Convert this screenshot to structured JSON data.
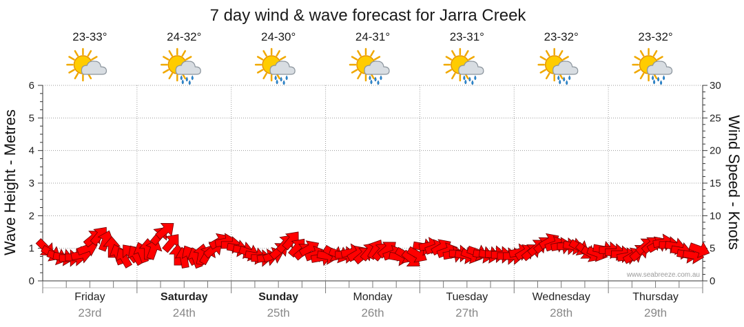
{
  "chart_data": {
    "type": "line",
    "title": "7 day wind & wave forecast for Jarra Creek",
    "ylabel_left": "Wave Height - Metres",
    "ylabel_right": "Wind Speed - Knots",
    "ylim_left": [
      0,
      6
    ],
    "ylim_right": [
      0,
      30
    ],
    "yticks_left": [
      "0",
      "1",
      "2",
      "3",
      "4",
      "5",
      "6"
    ],
    "yticks_right": [
      "0",
      "5",
      "10",
      "15",
      "20",
      "25",
      "30"
    ],
    "grid": true,
    "watermark": "www.seabreeze.com.au",
    "days": [
      {
        "name": "Friday",
        "date": "23rd",
        "temp": "23-33°",
        "weather": "partly-cloudy",
        "bold": false
      },
      {
        "name": "Saturday",
        "date": "24th",
        "temp": "24-32°",
        "weather": "showers",
        "bold": true
      },
      {
        "name": "Sunday",
        "date": "25th",
        "temp": "24-30°",
        "weather": "showers",
        "bold": true
      },
      {
        "name": "Monday",
        "date": "26th",
        "temp": "24-31°",
        "weather": "showers",
        "bold": false
      },
      {
        "name": "Tuesday",
        "date": "27th",
        "temp": "23-31°",
        "weather": "showers",
        "bold": false
      },
      {
        "name": "Wednesday",
        "date": "28th",
        "temp": "23-32°",
        "weather": "showers",
        "bold": false
      },
      {
        "name": "Thursday",
        "date": "29th",
        "temp": "23-32°",
        "weather": "showers",
        "bold": false
      }
    ],
    "series": [
      {
        "name": "Wind Speed",
        "color": "#ff0000",
        "unit": "knots",
        "values": [
          5.0,
          4.2,
          3.7,
          3.6,
          3.5,
          3.6,
          4.0,
          5.0,
          6.6,
          7.0,
          6.2,
          5.2,
          4.1,
          3.6,
          4.3,
          4.0,
          4.4,
          4.9,
          4.9,
          7.0,
          7.8,
          5.9,
          4.0,
          3.6,
          4.0,
          3.6,
          4.1,
          4.1,
          4.9,
          6.1,
          6.0,
          5.5,
          5.0,
          4.7,
          4.3,
          3.8,
          3.5,
          3.6,
          3.9,
          4.7,
          5.8,
          6.3,
          5.2,
          4.6,
          5.0,
          4.1,
          3.6,
          3.8,
          4.2,
          4.0,
          4.0,
          4.4,
          4.2,
          4.0,
          4.6,
          4.9,
          4.6,
          4.9,
          4.2,
          3.6,
          3.9,
          3.3,
          4.0,
          5.2,
          5.4,
          5.1,
          5.2,
          4.6,
          4.1,
          4.2,
          3.9,
          3.9,
          4.3,
          4.0,
          4.0,
          4.1,
          4.0,
          3.8,
          3.8,
          4.4,
          4.4,
          4.5,
          5.2,
          5.6,
          6.1,
          5.6,
          5.4,
          5.3,
          5.3,
          5.1,
          4.5,
          4.1,
          4.2,
          4.8,
          4.7,
          4.4,
          4.1,
          3.8,
          3.9,
          4.4,
          5.4,
          5.6,
          5.6,
          5.9,
          5.5,
          5.3,
          4.6,
          4.0,
          3.9,
          4.8
        ]
      },
      {
        "name": "Wind Direction",
        "unit": "degrees (from)",
        "values": [
          315,
          300,
          290,
          280,
          270,
          270,
          260,
          250,
          230,
          220,
          200,
          180,
          160,
          150,
          140,
          150,
          160,
          180,
          200,
          220,
          230,
          220,
          180,
          170,
          150,
          160,
          190,
          210,
          230,
          240,
          260,
          270,
          280,
          280,
          290,
          280,
          270,
          260,
          250,
          230,
          220,
          220,
          220,
          230,
          240,
          250,
          260,
          280,
          300,
          290,
          270,
          260,
          240,
          230,
          220,
          210,
          220,
          230,
          250,
          280,
          300,
          310,
          300,
          280,
          260,
          250,
          240,
          250,
          260,
          270,
          280,
          290,
          290,
          280,
          280,
          270,
          270,
          270,
          270,
          260,
          240,
          230,
          230,
          230,
          240,
          250,
          260,
          270,
          280,
          300,
          310,
          300,
          290,
          280,
          270,
          270,
          270,
          260,
          240,
          230,
          230,
          230,
          240,
          260,
          270,
          280,
          280,
          280,
          280,
          290
        ]
      }
    ]
  }
}
